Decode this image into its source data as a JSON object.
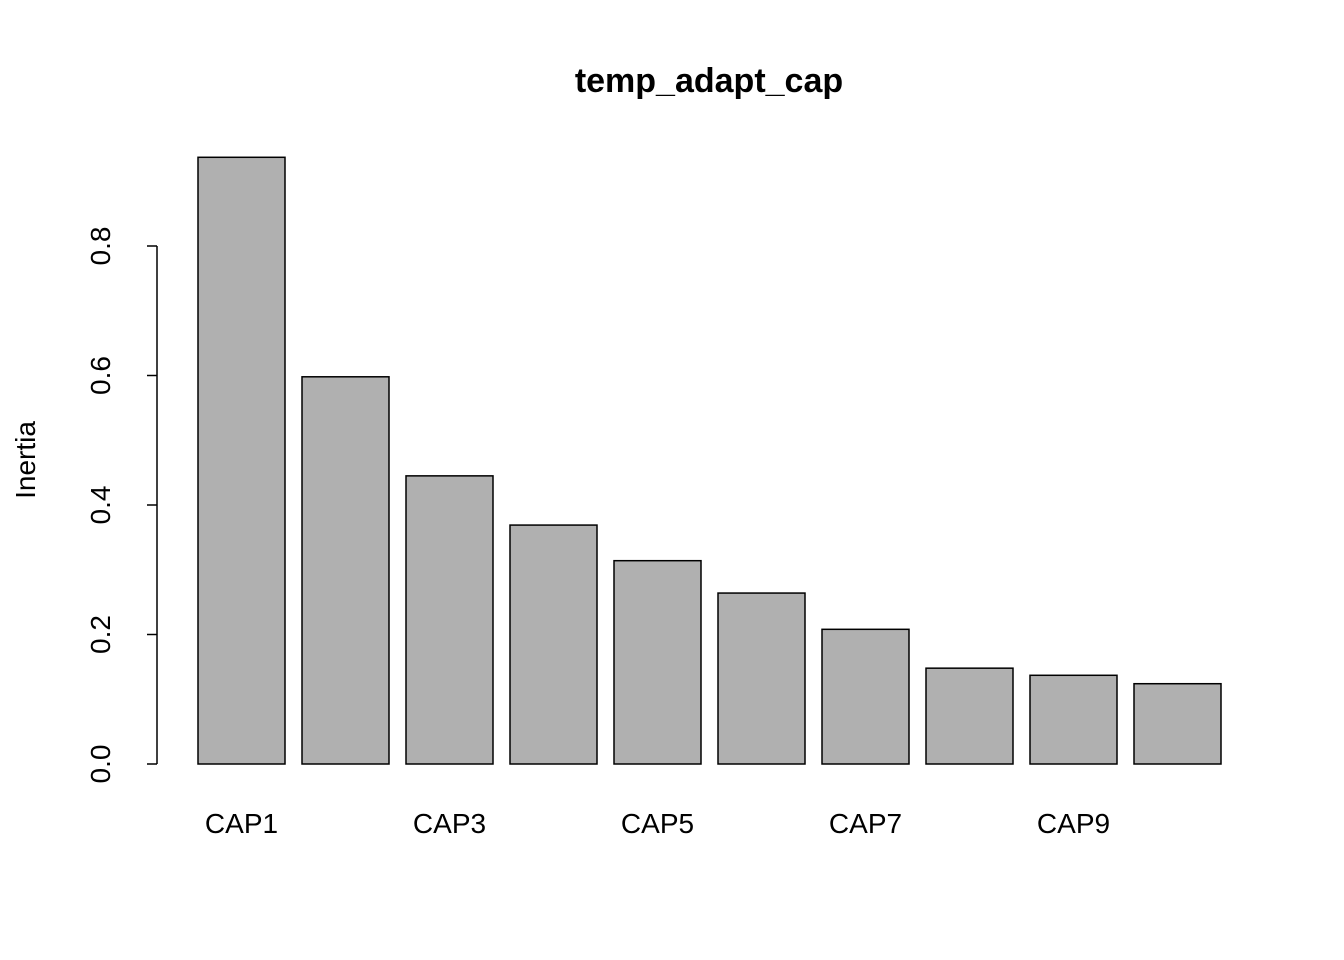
{
  "chart_data": {
    "type": "bar",
    "title": "temp_adapt_cap",
    "y_label": "Inertia",
    "categories": [
      "CAP1",
      null,
      "CAP3",
      null,
      "CAP5",
      null,
      "CAP7",
      null,
      "CAP9",
      null
    ],
    "values": [
      0.937,
      0.598,
      0.445,
      0.369,
      0.314,
      0.264,
      0.208,
      0.148,
      0.137,
      0.124
    ],
    "color": "#b0b0b0",
    "ylim": [
      0,
      0.96
    ],
    "yticks": [
      {
        "value": 0,
        "label": "0.0"
      },
      0.2,
      0.4,
      0.6,
      0.8
    ],
    "grid": false
  }
}
